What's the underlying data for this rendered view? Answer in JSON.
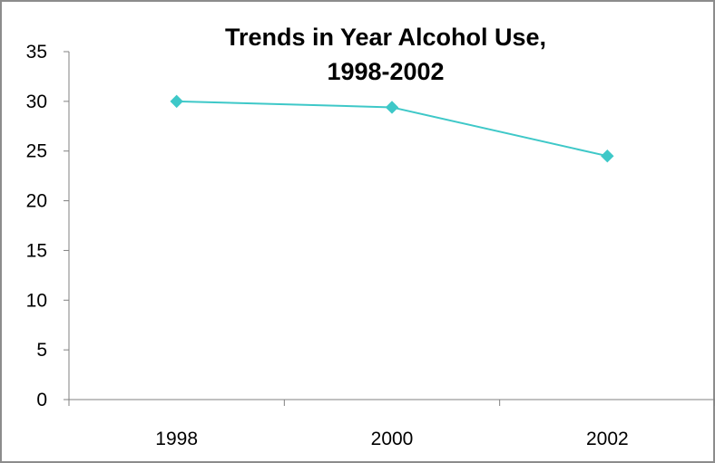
{
  "chart_data": {
    "type": "line",
    "title_lines": [
      "Trends in Year Alcohol Use,",
      "1998-2002"
    ],
    "categories": [
      "1998",
      "2000",
      "2002"
    ],
    "series": [
      {
        "values": [
          30.0,
          29.4,
          24.5
        ],
        "color": "#3ec8c8",
        "marker": "diamond"
      }
    ],
    "ylim": [
      0,
      35
    ],
    "yticks": [
      0,
      5,
      10,
      15,
      20,
      25,
      30,
      35
    ],
    "grid": false,
    "legend": "none",
    "xlabel": "",
    "ylabel": ""
  }
}
